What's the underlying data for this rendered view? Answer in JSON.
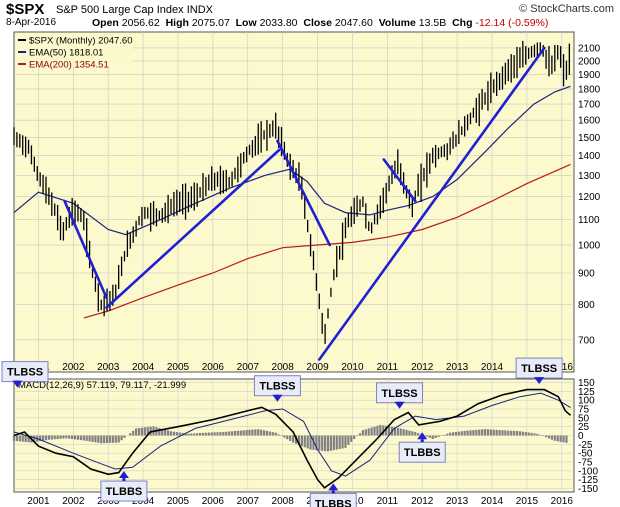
{
  "header": {
    "symbol": "$SPX",
    "name": "S&P 500 Large Cap Index",
    "exchange": "INDX",
    "brand": "© StockCharts.com",
    "date": "8-Apr-2016",
    "open_label": "Open",
    "open": "2056.62",
    "high_label": "High",
    "high": "2075.07",
    "low_label": "Low",
    "low": "2033.80",
    "close_label": "Close",
    "close": "2047.60",
    "volume_label": "Volume",
    "volume": "13.5B",
    "chg_label": "Chg",
    "chg": "-12.14 (-0.59%)"
  },
  "chart_data": [
    {
      "type": "line",
      "title": "S&P 500 Large Cap Index",
      "scale": "log",
      "ylim": [
        620,
        2230
      ],
      "xlim": [
        2000.3,
        2016.35
      ],
      "y_ticks": [
        700,
        800,
        900,
        1000,
        1100,
        1200,
        1300,
        1400,
        1500,
        1600,
        1700,
        1800,
        1900,
        2000,
        2100
      ],
      "x_ticks": [
        2001,
        2002,
        2003,
        2004,
        2005,
        2006,
        2007,
        2008,
        2009,
        2010,
        2011,
        2012,
        2013,
        2014,
        2015,
        2016
      ],
      "grid": true,
      "legend_position": "top-left",
      "legend": [
        {
          "name": "$SPX (Monthly) 2047.60",
          "color": "#000000"
        },
        {
          "name": "EMA(50) 1818.01",
          "color": "#1a237e"
        },
        {
          "name": "EMA(200) 1354.51",
          "color": "#b71c1c"
        }
      ],
      "series": [
        {
          "name": "$SPX (Monthly)",
          "color": "#000000",
          "x": [
            2000.3,
            2000.7,
            2001.0,
            2001.3,
            2001.7,
            2002.0,
            2002.3,
            2002.55,
            2002.8,
            2003.2,
            2003.5,
            2004.0,
            2004.5,
            2005.0,
            2005.5,
            2006.0,
            2006.5,
            2007.0,
            2007.5,
            2007.8,
            2008.2,
            2008.5,
            2008.8,
            2009.2,
            2009.5,
            2009.9,
            2010.3,
            2010.5,
            2010.9,
            2011.3,
            2011.7,
            2011.9,
            2012.3,
            2012.7,
            2013.0,
            2013.5,
            2014.0,
            2014.5,
            2015.0,
            2015.4,
            2015.7,
            2015.9,
            2016.1,
            2016.25
          ],
          "values": [
            1500,
            1450,
            1300,
            1200,
            1050,
            1150,
            1100,
            900,
            800,
            830,
            980,
            1130,
            1120,
            1180,
            1200,
            1280,
            1270,
            1420,
            1520,
            1560,
            1350,
            1280,
            1000,
            700,
            920,
            1100,
            1180,
            1050,
            1200,
            1360,
            1150,
            1250,
            1400,
            1430,
            1500,
            1650,
            1800,
            1950,
            2050,
            2110,
            1950,
            2080,
            1900,
            2047.6
          ]
        },
        {
          "name": "EMA(50)",
          "color": "#1a237e",
          "x": [
            2000.3,
            2001.0,
            2002.0,
            2003.0,
            2003.5,
            2004.5,
            2005.5,
            2006.5,
            2007.5,
            2008.2,
            2008.7,
            2009.2,
            2009.8,
            2010.5,
            2011.0,
            2011.6,
            2012.3,
            2013.0,
            2013.8,
            2014.5,
            2015.2,
            2015.8,
            2016.25
          ],
          "values": [
            1130,
            1220,
            1170,
            1060,
            1040,
            1100,
            1170,
            1240,
            1300,
            1330,
            1270,
            1170,
            1130,
            1120,
            1140,
            1160,
            1200,
            1280,
            1420,
            1560,
            1700,
            1780,
            1818.01
          ]
        },
        {
          "name": "EMA(200)",
          "color": "#b71c1c",
          "x": [
            2002.3,
            2003.0,
            2004.0,
            2005.0,
            2006.0,
            2007.0,
            2008.0,
            2009.0,
            2010.0,
            2011.0,
            2012.0,
            2013.0,
            2014.0,
            2015.0,
            2016.25
          ],
          "values": [
            760,
            780,
            820,
            860,
            900,
            950,
            990,
            1000,
            1010,
            1030,
            1060,
            1110,
            1180,
            1260,
            1354.51
          ]
        }
      ]
    },
    {
      "type": "line",
      "title": "MACD(12,26,9) 57.119, 79.117, -21.999",
      "ylim": [
        -160,
        160
      ],
      "xlim": [
        2000.3,
        2016.35
      ],
      "y_ticks": [
        -150,
        -125,
        -100,
        -75,
        -50,
        -25,
        0,
        25,
        50,
        75,
        100,
        125,
        150
      ],
      "grid": true,
      "series": [
        {
          "name": "MACD",
          "color": "#000000",
          "x": [
            2000.3,
            2000.6,
            2001.0,
            2001.5,
            2002.0,
            2002.5,
            2003.0,
            2003.3,
            2003.7,
            2004.2,
            2005.0,
            2006.0,
            2006.8,
            2007.4,
            2007.8,
            2008.3,
            2008.7,
            2009.0,
            2009.2,
            2009.6,
            2010.2,
            2010.7,
            2011.2,
            2011.6,
            2011.9,
            2012.5,
            2013.0,
            2013.6,
            2014.3,
            2015.0,
            2015.5,
            2015.9,
            2016.1,
            2016.25
          ],
          "values": [
            0,
            10,
            -30,
            -50,
            -60,
            -95,
            -110,
            -105,
            -50,
            10,
            25,
            45,
            65,
            80,
            60,
            10,
            -70,
            -125,
            -148,
            -120,
            -60,
            -10,
            45,
            65,
            30,
            40,
            55,
            90,
            115,
            130,
            130,
            110,
            70,
            57.119
          ]
        },
        {
          "name": "Signal",
          "color": "#1a237e",
          "x": [
            2000.3,
            2001.0,
            2002.0,
            2002.8,
            2003.2,
            2003.7,
            2004.5,
            2005.5,
            2006.5,
            2007.5,
            2008.0,
            2008.6,
            2009.0,
            2009.4,
            2009.8,
            2010.5,
            2011.2,
            2011.8,
            2012.4,
            2013.2,
            2014.0,
            2014.8,
            2015.4,
            2015.9,
            2016.25
          ],
          "values": [
            10,
            -10,
            -50,
            -80,
            -95,
            -90,
            -30,
            20,
            45,
            70,
            75,
            40,
            -40,
            -100,
            -115,
            -70,
            20,
            55,
            45,
            55,
            85,
            110,
            120,
            100,
            79.117
          ]
        },
        {
          "name": "Histogram",
          "color": "#808080",
          "x": [
            2000.3,
            2000.8,
            2001.3,
            2001.8,
            2002.3,
            2002.8,
            2003.3,
            2003.8,
            2004.3,
            2004.8,
            2005.3,
            2005.8,
            2006.3,
            2006.8,
            2007.3,
            2007.8,
            2008.3,
            2008.8,
            2009.3,
            2009.8,
            2010.3,
            2010.8,
            2011.3,
            2011.8,
            2012.3,
            2012.8,
            2013.3,
            2013.8,
            2014.3,
            2014.8,
            2015.3,
            2015.8,
            2016.2
          ],
          "values": [
            -15,
            -20,
            -12,
            -8,
            -14,
            -22,
            -20,
            20,
            26,
            12,
            5,
            8,
            10,
            14,
            18,
            8,
            -20,
            -40,
            -45,
            -35,
            15,
            30,
            22,
            10,
            -10,
            8,
            14,
            18,
            15,
            12,
            5,
            -15,
            -21.999
          ]
        }
      ]
    }
  ],
  "annotations": [
    {
      "label": "TLBSS",
      "x": 2000.4,
      "y": 130
    },
    {
      "label": "TLBBS",
      "x": 2003.45,
      "y": -95
    },
    {
      "label": "TLBSS",
      "x": 2007.85,
      "y": 90
    },
    {
      "label": "TLBBS",
      "x": 2009.45,
      "y": -130
    },
    {
      "label": "TLBSS",
      "x": 2011.35,
      "y": 70
    },
    {
      "label": "TLBBS",
      "x": 2012.0,
      "y": 15
    },
    {
      "label": "TLBSS",
      "x": 2015.35,
      "y": 140
    }
  ],
  "trendlines": [
    {
      "from": [
        2001.75,
        1180
      ],
      "to": [
        2002.95,
        820
      ]
    },
    {
      "from": [
        2002.95,
        790
      ],
      "to": [
        2007.9,
        1430
      ]
    },
    {
      "from": [
        2007.85,
        1480
      ],
      "to": [
        2009.35,
        1000
      ]
    },
    {
      "from": [
        2009.05,
        650
      ],
      "to": [
        2015.5,
        2100
      ]
    },
    {
      "from": [
        2010.9,
        1380
      ],
      "to": [
        2011.8,
        1180
      ]
    }
  ],
  "trendline_color": "#1f1fd6",
  "annotation_fill": "#e8ecf8",
  "annotation_border": "#8080c0",
  "arrow_color": "#1f1fd6",
  "panel_bg": "#fcf9cc"
}
